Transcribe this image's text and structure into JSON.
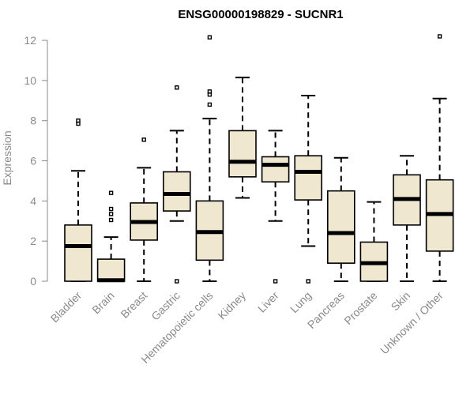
{
  "chart_data": {
    "type": "boxplot",
    "title": "ENSG00000198829 - SUCNR1",
    "ylabel": "Expression",
    "xlabel": "",
    "ylim": [
      0,
      12.2
    ],
    "yticks": [
      0,
      2,
      4,
      6,
      8,
      10,
      12
    ],
    "box_fill": "#efe7cf",
    "categories": [
      "Bladder",
      "Brain",
      "Breast",
      "Gastric",
      "Hematopoietic cells",
      "Kidney",
      "Liver",
      "Lung",
      "Pancreas",
      "Prostate",
      "Skin",
      "Unknown / Other"
    ],
    "boxes": [
      {
        "whisker_low": 0,
        "q1": 0,
        "median": 1.75,
        "q3": 2.8,
        "whisker_high": 5.5,
        "outliers": [
          7.85,
          8.0
        ]
      },
      {
        "whisker_low": 0,
        "q1": 0,
        "median": 0.05,
        "q3": 1.1,
        "whisker_high": 2.2,
        "outliers": [
          3.05,
          3.35,
          3.6,
          4.4
        ]
      },
      {
        "whisker_low": 0,
        "q1": 2.05,
        "median": 2.95,
        "q3": 3.9,
        "whisker_high": 5.65,
        "outliers": [
          7.05
        ]
      },
      {
        "whisker_low": 3.0,
        "q1": 3.5,
        "median": 4.35,
        "q3": 5.45,
        "whisker_high": 7.5,
        "outliers": [
          0,
          9.65
        ]
      },
      {
        "whisker_low": 0,
        "q1": 1.05,
        "median": 2.45,
        "q3": 4.0,
        "whisker_high": 8.1,
        "outliers": [
          8.8,
          9.3,
          9.45,
          12.15
        ]
      },
      {
        "whisker_low": 4.15,
        "q1": 5.2,
        "median": 5.95,
        "q3": 7.5,
        "whisker_high": 10.15,
        "outliers": []
      },
      {
        "whisker_low": 3.0,
        "q1": 4.95,
        "median": 5.8,
        "q3": 6.2,
        "whisker_high": 7.5,
        "outliers": [
          0
        ]
      },
      {
        "whisker_low": 1.75,
        "q1": 4.05,
        "median": 5.45,
        "q3": 6.25,
        "whisker_high": 9.25,
        "outliers": [
          0
        ]
      },
      {
        "whisker_low": 0,
        "q1": 0.9,
        "median": 2.4,
        "q3": 4.5,
        "whisker_high": 6.15,
        "outliers": []
      },
      {
        "whisker_low": 0,
        "q1": 0,
        "median": 0.9,
        "q3": 1.95,
        "whisker_high": 3.95,
        "outliers": []
      },
      {
        "whisker_low": 0,
        "q1": 2.8,
        "median": 4.1,
        "q3": 5.3,
        "whisker_high": 6.25,
        "outliers": []
      },
      {
        "whisker_low": 0,
        "q1": 1.5,
        "median": 3.35,
        "q3": 5.05,
        "whisker_high": 9.1,
        "outliers": [
          12.2
        ]
      }
    ]
  }
}
